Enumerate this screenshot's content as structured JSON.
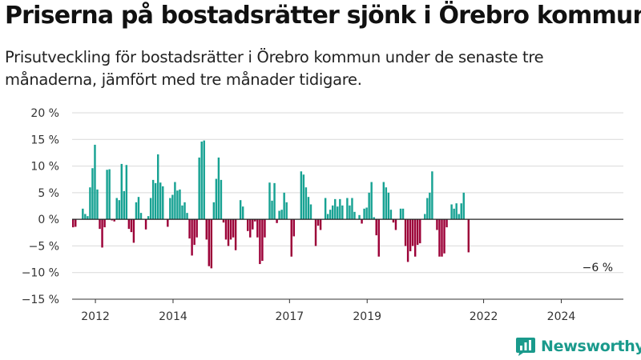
{
  "header": {
    "title": "Priserna på bostadsrätter sjönk i Örebro kommun",
    "subtitle": "Prisutveckling för bostadsrätter i Örebro kommun under de senaste tre månaderna, jämfört med tre månader tidigare."
  },
  "brand": {
    "name": "Newsworthy",
    "icon": "newsworthy-logo-icon"
  },
  "colors": {
    "positive": "#17a293",
    "negative": "#9c0138",
    "grid": "#d9d9d9",
    "zero": "#222222"
  },
  "chart_data": {
    "type": "bar",
    "title": "Priserna på bostadsrätter sjönk i Örebro kommun",
    "ylim": [
      -15,
      20
    ],
    "yticks": [
      20,
      15,
      10,
      5,
      0,
      -5,
      -10,
      -15
    ],
    "ytick_labels": [
      "20 %",
      "15 %",
      "10 %",
      "5 %",
      "0 %",
      "−5 %",
      "−10 %",
      "−15 %"
    ],
    "xtick_years": [
      2012,
      2014,
      2017,
      2019,
      2022,
      2024
    ],
    "xlim": [
      2011.4,
      2025.6
    ],
    "grid": true,
    "last_value_label": "−6 %",
    "series": [
      {
        "start": 2011.4,
        "step": 0.0625,
        "values": [
          -1.5,
          -1.4,
          0,
          0,
          2.0,
          1.0,
          0.6,
          6.0,
          9.6,
          14.0,
          5.6,
          -1.8,
          -5.3,
          -1.5,
          9.3,
          9.4,
          -0.2,
          -0.4,
          4.0,
          3.6,
          10.4,
          5.3,
          10.2,
          -1.8,
          -2.4,
          -4.4,
          3.2,
          4.2,
          1.2,
          0,
          -1.9,
          0.6,
          4.0,
          7.4,
          6.8,
          12.2,
          6.9,
          6.2,
          0,
          -1.4,
          4.0,
          4.6,
          7.0,
          5.4,
          5.6,
          2.6,
          3.2,
          1.2,
          -3.6,
          -6.8,
          -4.8,
          -3.4,
          11.6,
          14.6,
          14.8,
          -3.8,
          -8.8,
          -9.2,
          3.2,
          7.6,
          11.6,
          7.4,
          -0.6,
          -3.8,
          -5.0,
          -3.8,
          -3.4,
          -5.8,
          0.0,
          3.6,
          2.4,
          0,
          -2.2,
          -3.4,
          -1.9,
          -0.4,
          -3.4,
          -8.4,
          -7.8,
          -3.4,
          0,
          6.9,
          3.5,
          6.8,
          -0.7,
          1.6,
          1.8,
          5.0,
          3.2,
          0,
          -7.0,
          -3.2,
          0,
          0,
          9.0,
          8.4,
          6.0,
          4.2,
          2.8,
          0,
          -5.0,
          -1.2,
          -2.0,
          0,
          4.0,
          1.0,
          1.8,
          2.6,
          3.8,
          2.4,
          3.8,
          2.6,
          0,
          4.0,
          2.6,
          4.0,
          1.4,
          0,
          0.8,
          -0.8,
          2.0,
          2.2,
          5.0,
          7.0,
          0.4,
          -3.0,
          -7.0,
          0,
          7.0,
          6.0,
          5.0,
          1.8,
          -0.6,
          -2.0,
          0,
          2.0,
          2.0,
          -5.0,
          -8.0,
          -6.0,
          -5.0,
          -7.0,
          -4.8,
          -4.5,
          0,
          1.0,
          4.0,
          5.0,
          9.0,
          0,
          -2.0,
          -7.0,
          -7.0,
          -6.4,
          -1.5,
          0,
          2.8,
          2.0,
          3.0,
          1.0,
          3.0,
          5.0,
          0,
          -6.2
        ]
      }
    ]
  }
}
